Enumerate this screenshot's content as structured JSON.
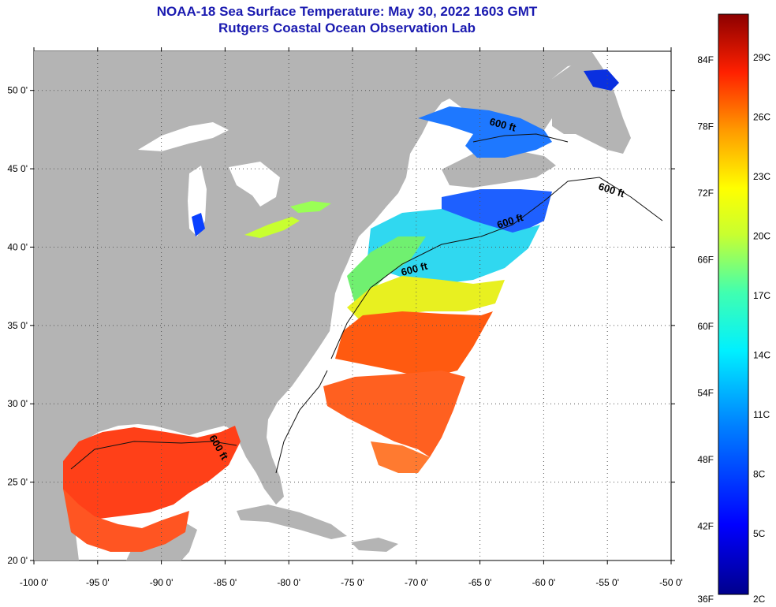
{
  "title": {
    "line1": "NOAA-18 Sea Surface Temperature:  May 30, 2022 1603 GMT",
    "line2": "Rutgers Coastal Ocean Observation Lab"
  },
  "map": {
    "lon_range": [
      -100,
      -50
    ],
    "lat_range": [
      20,
      52.5
    ],
    "x_ticks": [
      "-100 0'",
      "-95 0'",
      "-90 0'",
      "-85 0'",
      "-80 0'",
      "-75 0'",
      "-70 0'",
      "-65 0'",
      "-60 0'",
      "-55 0'",
      "-50 0'"
    ],
    "y_ticks": [
      "50 0'",
      "45 0'",
      "40 0'",
      "35 0'",
      "30 0'",
      "25 0'",
      "20 0'"
    ],
    "isobath_labels": [
      "600 ft",
      "600 ft",
      "600 ft",
      "600 ft",
      "600 ft"
    ],
    "colors": {
      "land": "#b4b4b4",
      "no_data": "#ffffff",
      "grid": "#444444"
    }
  },
  "colorbar": {
    "fahrenheit": [
      "84F",
      "78F",
      "72F",
      "66F",
      "60F",
      "54F",
      "48F",
      "42F",
      "36F"
    ],
    "celsius": [
      "29C",
      "26C",
      "23C",
      "20C",
      "17C",
      "14C",
      "11C",
      "8C",
      "5C",
      "2C"
    ]
  }
}
